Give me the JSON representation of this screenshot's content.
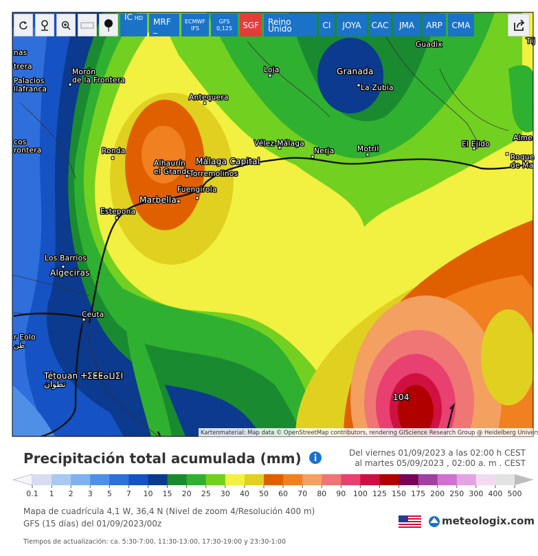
{
  "toolbar": {
    "buttons": [
      {
        "lines": [
          "IC",
          "HD"
        ]
      },
      {
        "lines": [
          "MRF _"
        ]
      },
      {
        "lines": [
          "ECMWF",
          "IFS"
        ]
      },
      {
        "lines": [
          "GFS",
          "0,125"
        ]
      },
      {
        "lines": [
          "SGF"
        ]
      },
      {
        "lines": [
          "Reino Unido"
        ]
      },
      {
        "lines": [
          "CI"
        ]
      },
      {
        "lines": [
          "JOYA"
        ]
      },
      {
        "lines": [
          "CAC"
        ]
      },
      {
        "lines": [
          "JMA"
        ]
      },
      {
        "lines": [
          "ARP"
        ]
      },
      {
        "lines": [
          "CMA"
        ]
      }
    ]
  },
  "map": {
    "places": [
      {
        "lines": [
          "nas"
        ]
      },
      {
        "lines": [
          "trera"
        ]
      },
      {
        "lines": [
          "Palacios",
          "llafranca"
        ]
      },
      {
        "lines": [
          "Morón",
          "de la Frontera"
        ]
      },
      {
        "lines": [
          "Loja"
        ]
      },
      {
        "lines": [
          "Granada"
        ]
      },
      {
        "lines": [
          "La Zubia"
        ]
      },
      {
        "lines": [
          "Guadix"
        ]
      },
      {
        "lines": [
          "Antequera"
        ]
      },
      {
        "lines": [
          "cos",
          "rontera"
        ]
      },
      {
        "lines": [
          "Ronda"
        ]
      },
      {
        "lines": [
          "Alhaurín",
          "el Grande"
        ]
      },
      {
        "lines": [
          "Málaga Capital"
        ]
      },
      {
        "lines": [
          "Torremolinos"
        ]
      },
      {
        "lines": [
          "Vélez-Málaga"
        ]
      },
      {
        "lines": [
          "Nerja"
        ]
      },
      {
        "lines": [
          "Motril"
        ]
      },
      {
        "lines": [
          "El Ejido"
        ]
      },
      {
        "lines": [
          "Alme"
        ]
      },
      {
        "lines": [
          "Roque",
          "de Ma"
        ]
      },
      {
        "lines": [
          "Tíj"
        ]
      },
      {
        "lines": [
          "Fuengirola"
        ]
      },
      {
        "lines": [
          "Marbella"
        ]
      },
      {
        "lines": [
          "Estepona"
        ]
      },
      {
        "lines": [
          "Los Barrios"
        ]
      },
      {
        "lines": [
          "Algeciras"
        ]
      },
      {
        "lines": [
          "Ceuta"
        ]
      },
      {
        "lines": [
          "r Eolo",
          "طن"
        ]
      },
      {
        "lines": [
          "Tétouan ⵜⵉⵟⵟⴰⵡⵉⵏ",
          "تطوان"
        ]
      }
    ],
    "max_label": "104",
    "attribution": "Kartenmaterial: Map data © OpenStreetMap contributors, rendering GIScience Research Group @ Heidelberg University"
  },
  "info": {
    "title": "Precipitación total acumulada (mm)",
    "period": [
      "Del viernes 01/09/2023 a las 02:00 h CEST",
      "al martes 05/09/2023 , 02:00 a. m . CEST"
    ],
    "grid": "Mapa de cuadrícula 4,1 W, 36,4 N (Nivel de zoom 4/Resolución 400 m)",
    "model": "GFS (15 días) del 01/09/2023/00z",
    "updates": "Tiempos de actualización: ca. 5:30-7:00, 11:30-13:00, 17:30-19:00 y 23:30-1:00",
    "logo": "meteologix.com"
  },
  "legend": {
    "labels": [
      0.1,
      1,
      2,
      3,
      5,
      7,
      10,
      15,
      20,
      25,
      30,
      40,
      50,
      60,
      70,
      80,
      90,
      100,
      125,
      150,
      175,
      200,
      250,
      300,
      400,
      500
    ],
    "colors": [
      "#d8dcf2",
      "#a9c9f1",
      "#7fb0ef",
      "#4f8fe6",
      "#2f6fdc",
      "#1552c4",
      "#0b3a8e",
      "#1a8a30",
      "#30b030",
      "#72d020",
      "#f2f040",
      "#e0d020",
      "#e06000",
      "#f08020",
      "#f3a060",
      "#f07575",
      "#e84070",
      "#d01040",
      "#b00000",
      "#7a0058",
      "#a040a0",
      "#d070d0",
      "#e4a4e4",
      "#f2daf2",
      "#e2e2e2"
    ],
    "under_color": "#f4f6fc",
    "over_color": "#bdbdbd"
  }
}
